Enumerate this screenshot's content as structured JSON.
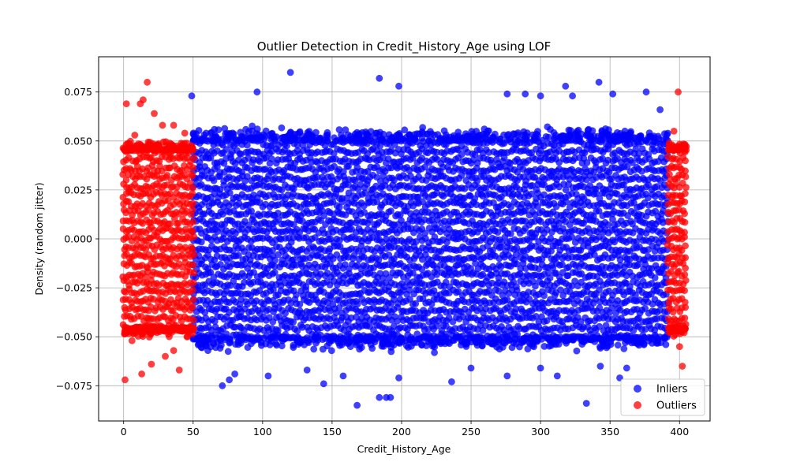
{
  "chart_data": {
    "type": "scatter",
    "title": "Outlier Detection in Credit_History_Age using LOF",
    "xlabel": "Credit_History_Age",
    "ylabel": "Density (random jitter)",
    "xlim": [
      -18,
      422
    ],
    "ylim": [
      -0.093,
      0.093
    ],
    "xticks": [
      0,
      50,
      100,
      150,
      200,
      250,
      300,
      350,
      400
    ],
    "xtick_labels": [
      "0",
      "50",
      "100",
      "150",
      "200",
      "250",
      "300",
      "350",
      "400"
    ],
    "yticks": [
      -0.075,
      -0.05,
      -0.025,
      0.0,
      0.025,
      0.05,
      0.075
    ],
    "ytick_labels": [
      "−0.075",
      "−0.050",
      "−0.025",
      "0.000",
      "0.025",
      "0.050",
      "0.075"
    ],
    "grid": true,
    "legend_position": "bottom-right",
    "series": [
      {
        "name": "Inliers",
        "color": "#0000ff",
        "x_range": [
          50,
          392
        ],
        "y_band": [
          -0.05,
          0.05
        ],
        "points": [
          [
            120,
            0.085
          ],
          [
            96,
            0.075
          ],
          [
            49,
            0.073
          ],
          [
            184,
            0.082
          ],
          [
            198,
            0.078
          ],
          [
            323,
            0.073
          ],
          [
            342,
            0.08
          ],
          [
            376,
            0.075
          ],
          [
            318,
            0.078
          ],
          [
            276,
            0.074
          ],
          [
            289,
            0.074
          ],
          [
            300,
            0.073
          ],
          [
            352,
            0.074
          ],
          [
            386,
            0.066
          ],
          [
            168,
            -0.085
          ],
          [
            184,
            -0.081
          ],
          [
            189,
            -0.081
          ],
          [
            192,
            -0.081
          ],
          [
            333,
            -0.084
          ],
          [
            71,
            -0.075
          ],
          [
            76,
            -0.072
          ],
          [
            144,
            -0.074
          ],
          [
            158,
            -0.07
          ],
          [
            198,
            -0.071
          ],
          [
            236,
            -0.073
          ],
          [
            276,
            -0.07
          ],
          [
            357,
            -0.071
          ],
          [
            312,
            -0.07
          ],
          [
            80,
            -0.069
          ],
          [
            104,
            -0.07
          ],
          [
            132,
            -0.067
          ],
          [
            250,
            -0.066
          ],
          [
            300,
            -0.066
          ],
          [
            343,
            -0.065
          ],
          [
            362,
            -0.066
          ]
        ]
      },
      {
        "name": "Outliers",
        "color": "#ff0000",
        "x_ranges": [
          [
            0,
            50
          ],
          [
            392,
            405
          ]
        ],
        "y_band": [
          -0.045,
          0.045
        ],
        "points": [
          [
            17,
            0.08
          ],
          [
            14,
            0.071
          ],
          [
            2,
            0.069
          ],
          [
            12,
            0.069
          ],
          [
            399,
            0.075
          ],
          [
            1,
            -0.072
          ],
          [
            13,
            -0.069
          ],
          [
            40,
            -0.067
          ],
          [
            402,
            -0.065
          ],
          [
            22,
            0.064
          ],
          [
            28,
            0.058
          ],
          [
            36,
            0.058
          ],
          [
            8,
            0.053
          ],
          [
            20,
            -0.064
          ],
          [
            30,
            -0.06
          ],
          [
            36,
            -0.057
          ],
          [
            6,
            -0.052
          ],
          [
            44,
            0.054
          ],
          [
            396,
            0.055
          ],
          [
            400,
            -0.055
          ]
        ]
      }
    ]
  }
}
